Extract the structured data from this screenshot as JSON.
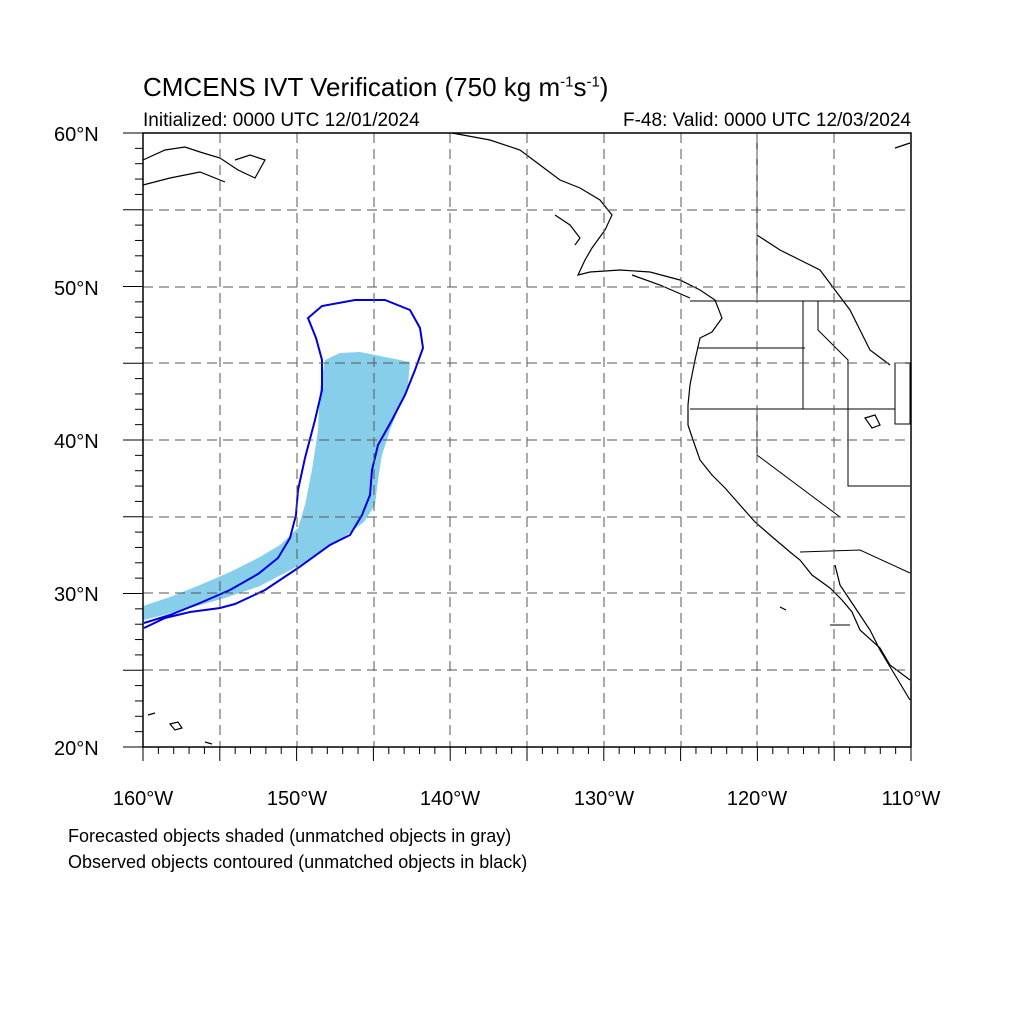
{
  "title": {
    "main": "CMCENS IVT Verification (750 kg m",
    "sup1": "-1",
    "mid": "s",
    "sup2": "-1",
    "end": ")"
  },
  "subtitle_left": "Initialized: 0000 UTC 12/01/2024",
  "subtitle_right": "F-48: Valid: 0000 UTC 12/03/2024",
  "lat_labels": [
    "60°N",
    "50°N",
    "40°N",
    "30°N",
    "20°N"
  ],
  "lon_labels": [
    "160°W",
    "150°W",
    "140°W",
    "130°W",
    "120°W",
    "110°W"
  ],
  "notes": [
    "Forecasted objects shaded (unmatched objects in gray)",
    "Observed objects contoured (unmatched objects in black)"
  ],
  "colors": {
    "forecast_shade": "#87ceeb",
    "observed_contour": "#0000dd",
    "coast": "#000000",
    "grid": "#555555"
  }
}
